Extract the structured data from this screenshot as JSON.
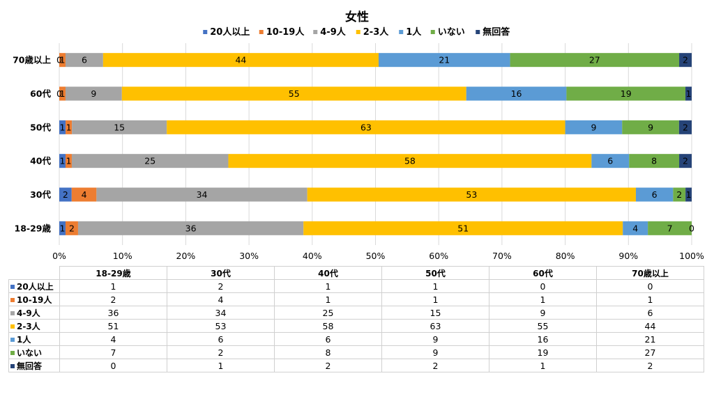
{
  "chart_data": {
    "type": "bar",
    "orientation": "horizontal",
    "stacked": "percent",
    "title": "女性",
    "categories": [
      "18-29歳",
      "30代",
      "40代",
      "50代",
      "60代",
      "70歳以上"
    ],
    "x_ticks": [
      "0%",
      "10%",
      "20%",
      "30%",
      "40%",
      "50%",
      "60%",
      "70%",
      "80%",
      "90%",
      "100%"
    ],
    "xlim": [
      0,
      100
    ],
    "grid": true,
    "legend_position": "top",
    "series": [
      {
        "name": "20人以上",
        "color": "#4472c4",
        "values": [
          1,
          2,
          1,
          1,
          0,
          0
        ]
      },
      {
        "name": "10-19人",
        "color": "#ed7d31",
        "values": [
          2,
          4,
          1,
          1,
          1,
          1
        ]
      },
      {
        "name": "4-9人",
        "color": "#a5a5a5",
        "values": [
          36,
          34,
          25,
          15,
          9,
          6
        ]
      },
      {
        "name": "2-3人",
        "color": "#ffc000",
        "values": [
          51,
          53,
          58,
          63,
          55,
          44
        ]
      },
      {
        "name": "1人",
        "color": "#5b9bd5",
        "values": [
          4,
          6,
          6,
          9,
          16,
          21
        ]
      },
      {
        "name": "いない",
        "color": "#70ad47",
        "values": [
          7,
          2,
          8,
          9,
          19,
          27
        ]
      },
      {
        "name": "無回答",
        "color": "#264478",
        "values": [
          0,
          1,
          2,
          2,
          1,
          2
        ]
      }
    ]
  }
}
